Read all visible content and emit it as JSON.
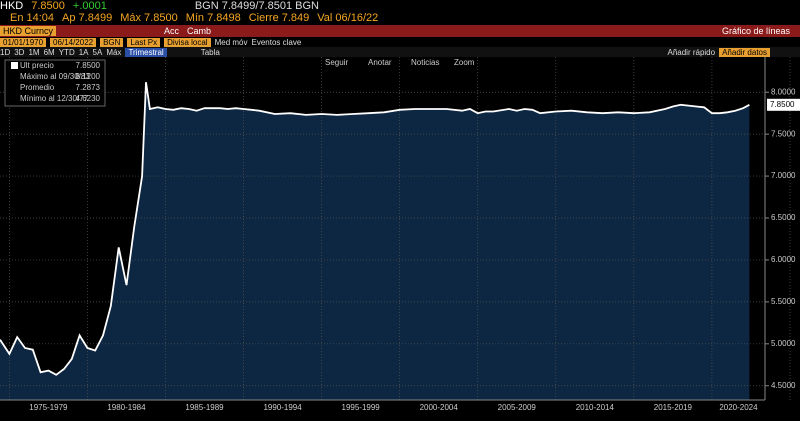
{
  "header": {
    "ticker": "HKD",
    "last": "7.8500",
    "change": "+.0001",
    "bid_ask": "BGN 7.8499/7.8501 BGN",
    "row2": [
      "En 14:04",
      "Ap 7.8499",
      "Máx 7.8500",
      "Mín 7.8498",
      "Cierre 7.849",
      "Val 06/16/22"
    ]
  },
  "toolbar": {
    "security": "HKD Curncy",
    "actions": "Acc",
    "change": "Camb",
    "chart_type": "Gráfico de líneas",
    "start_date": "01/01/1970",
    "end_date": "06/14/2022",
    "source": "BGN",
    "field": "Last Px",
    "currency": "Divisa local",
    "moving_avg": "Med móv",
    "events": "Eventos clave",
    "ranges": [
      "1D",
      "3D",
      "1M",
      "6M",
      "YTD",
      "1A",
      "5A",
      "Máx"
    ],
    "period": "Trimestral",
    "table": "Tabla",
    "quick_add": "Añadir rápido",
    "add_data": "Añadir datos",
    "chart_tools": [
      "Seguir",
      "Anotar",
      "Noticias",
      "Zoom"
    ]
  },
  "chart_data": {
    "type": "area",
    "color": "#ffffff",
    "fill": "#0d2641",
    "grid": true,
    "x": [
      1974.4,
      1975,
      1975.5,
      1976,
      1976.5,
      1977,
      1977.5,
      1978,
      1978.5,
      1979,
      1979.5,
      1980,
      1980.5,
      1981,
      1981.5,
      1982,
      1982.5,
      1983,
      1983.5,
      1983.75,
      1984,
      1984.5,
      1985,
      1985.5,
      1986,
      1986.5,
      1987,
      1987.5,
      1988,
      1988.5,
      1989,
      1989.5,
      1990,
      1990.5,
      1991,
      1992,
      1993,
      1994,
      1995,
      1996,
      1997,
      1998,
      1999,
      2000,
      2001,
      2002,
      2003,
      2004,
      2004.5,
      2005,
      2005.5,
      2006,
      2007,
      2007.5,
      2008,
      2008.5,
      2009,
      2010,
      2011,
      2012,
      2013,
      2014,
      2015,
      2016,
      2017,
      2017.5,
      2018,
      2018.5,
      2019,
      2019.5,
      2020,
      2020.5,
      2021,
      2021.5,
      2022,
      2022.4
    ],
    "values": [
      5.05,
      4.88,
      5.08,
      4.95,
      4.93,
      4.66,
      4.68,
      4.63,
      4.7,
      4.82,
      5.1,
      4.95,
      4.92,
      5.1,
      5.45,
      6.15,
      5.7,
      6.4,
      7.0,
      8.12,
      7.8,
      7.82,
      7.8,
      7.79,
      7.81,
      7.8,
      7.78,
      7.81,
      7.81,
      7.81,
      7.8,
      7.81,
      7.8,
      7.79,
      7.78,
      7.74,
      7.75,
      7.73,
      7.74,
      7.73,
      7.74,
      7.75,
      7.76,
      7.79,
      7.8,
      7.8,
      7.8,
      7.78,
      7.8,
      7.75,
      7.77,
      7.77,
      7.8,
      7.78,
      7.8,
      7.79,
      7.75,
      7.77,
      7.78,
      7.76,
      7.75,
      7.76,
      7.75,
      7.76,
      7.8,
      7.83,
      7.85,
      7.84,
      7.83,
      7.82,
      7.75,
      7.75,
      7.76,
      7.78,
      7.81,
      7.85
    ],
    "last_price_label": "7.8500",
    "xlim": [
      1974.4,
      2023.4
    ],
    "xticks": [
      1975,
      1980,
      1985,
      1990,
      1995,
      2000,
      2005,
      2010,
      2015,
      2020,
      2025
    ],
    "x_period_labels": [
      "1975-1979",
      "1980-1984",
      "1985-1989",
      "1990-1994",
      "1995-1999",
      "2000-2004",
      "2005-2009",
      "2010-2014",
      "2015-2019",
      "2020-2024"
    ],
    "ylim": [
      4.33,
      8.42
    ],
    "yticks": [
      {
        "value": 4.5,
        "label": "4.5000"
      },
      {
        "value": 5,
        "label": "5.0000"
      },
      {
        "value": 5.5,
        "label": "5.5000"
      },
      {
        "value": 6,
        "label": "6.0000"
      },
      {
        "value": 6.5,
        "label": "6.5000"
      },
      {
        "value": 7,
        "label": "7.0000"
      },
      {
        "value": 7.5,
        "label": "7.5000"
      },
      {
        "value": 8,
        "label": "8.0000"
      }
    ],
    "legend_stats": [
      {
        "label": "Ult precio",
        "value": "7.8500"
      },
      {
        "label": "Máximo al 09/30/83",
        "value": "8.1200"
      },
      {
        "label": "Promedio",
        "value": "7.2873"
      },
      {
        "label": "Mínimo al 12/30/77",
        "value": "4.6230"
      }
    ]
  }
}
